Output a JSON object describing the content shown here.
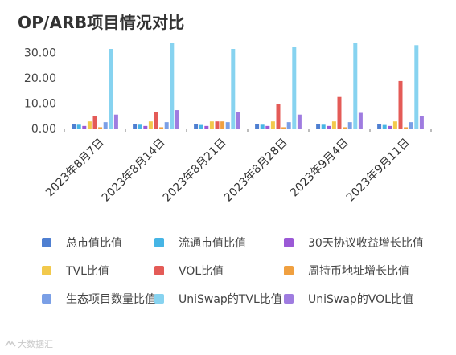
{
  "chart_data": {
    "type": "bar",
    "title": "OP/ARB项目情况对比",
    "categories": [
      "2023年8月7日",
      "2023年8月14日",
      "2023年8月21日",
      "2023年8月28日",
      "2023年9月4日",
      "2023年9月11日"
    ],
    "ylim": [
      0,
      35
    ],
    "yticks": [
      "0.00",
      "10.00",
      "20.00",
      "30.00"
    ],
    "ytick_values": [
      0,
      10,
      20,
      30
    ],
    "grid": false,
    "legend_position": "bottom",
    "series": [
      {
        "name": "总市值比值",
        "color": "#4f7fd1",
        "values": [
          1.8,
          1.8,
          1.7,
          1.8,
          1.8,
          1.7
        ]
      },
      {
        "name": "流通市值比值",
        "color": "#46b5e5",
        "values": [
          1.5,
          1.5,
          1.4,
          1.5,
          1.5,
          1.4
        ]
      },
      {
        "name": "30天协议收益增长比值",
        "color": "#9b59d6",
        "values": [
          1.0,
          1.0,
          1.0,
          1.0,
          1.0,
          1.0
        ]
      },
      {
        "name": "TVL比值",
        "color": "#f2c94c",
        "values": [
          2.8,
          2.8,
          2.8,
          2.8,
          2.8,
          2.8
        ]
      },
      {
        "name": "VOL比值",
        "color": "#e45b57",
        "values": [
          5.0,
          6.5,
          2.8,
          9.8,
          12.5,
          18.8
        ]
      },
      {
        "name": "周持币地址增长比值",
        "color": "#f0a040",
        "values": [
          0.5,
          0.5,
          2.8,
          0.5,
          0.5,
          0.5
        ]
      },
      {
        "name": "生态项目数量比值",
        "color": "#7a9fe6",
        "values": [
          2.5,
          2.5,
          2.5,
          2.5,
          2.5,
          2.5
        ]
      },
      {
        "name": "UniSwap的TVL比值",
        "color": "#87d3f0",
        "values": [
          31.5,
          34.0,
          31.5,
          32.3,
          34.0,
          33.0
        ]
      },
      {
        "name": "UniSwap的VOL比值",
        "color": "#9f7ce0",
        "values": [
          5.5,
          7.3,
          6.5,
          5.5,
          6.2,
          5.0
        ]
      }
    ]
  },
  "watermark": {
    "text": "大数据汇"
  }
}
